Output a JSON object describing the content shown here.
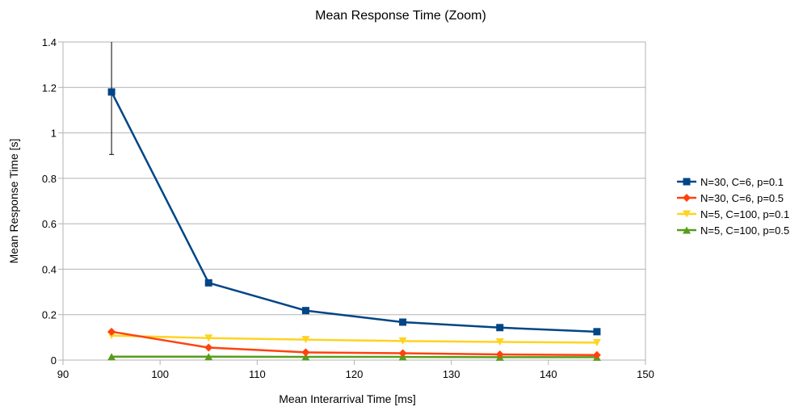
{
  "chart_data": {
    "type": "line",
    "title": "Mean Response Time (Zoom)",
    "xlabel": "Mean Interarrival Time [ms]",
    "ylabel": "Mean Response Time [s]",
    "xlim": [
      90,
      150
    ],
    "ylim": [
      0,
      1.4
    ],
    "xticks": [
      90,
      100,
      110,
      120,
      130,
      140,
      150
    ],
    "yticks": [
      0,
      0.2,
      0.4,
      0.6,
      0.8,
      1,
      1.2,
      1.4
    ],
    "xtick_labels": [
      "90",
      "100",
      "110",
      "120",
      "130",
      "140",
      "150"
    ],
    "ytick_labels": [
      "0",
      "0.2",
      "0.4",
      "0.6",
      "0.8",
      "1",
      "1.2",
      "1.4"
    ],
    "grid": "horizontal",
    "legend_position": "right",
    "x": [
      95,
      105,
      115,
      125,
      135,
      145
    ],
    "series": [
      {
        "name": "N=30, C=6, p=0.1",
        "color": "#004586",
        "marker": "square",
        "values": [
          1.18,
          0.34,
          0.218,
          0.167,
          0.143,
          0.125
        ],
        "error_bars": [
          [
            0.905,
            1.4
          ],
          null,
          null,
          null,
          null,
          null
        ]
      },
      {
        "name": "N=30, C=6, p=0.5",
        "color": "#ff420e",
        "marker": "diamond",
        "values": [
          0.125,
          0.055,
          0.034,
          0.03,
          0.025,
          0.022
        ]
      },
      {
        "name": "N=5, C=100, p=0.1",
        "color": "#ffd320",
        "marker": "triangle-down",
        "values": [
          0.108,
          0.097,
          0.09,
          0.084,
          0.08,
          0.077
        ]
      },
      {
        "name": "N=5, C=100, p=0.5",
        "color": "#579d1c",
        "marker": "triangle-up",
        "values": [
          0.015,
          0.015,
          0.014,
          0.014,
          0.013,
          0.013
        ]
      }
    ]
  }
}
